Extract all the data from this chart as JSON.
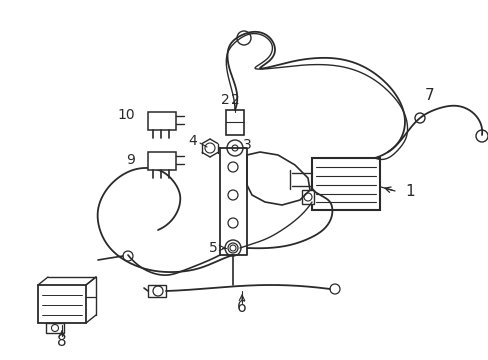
{
  "background_color": "#ffffff",
  "line_color": "#2a2a2a",
  "label_color": "#111111",
  "figsize": [
    4.89,
    3.6
  ],
  "dpi": 100,
  "xlim": [
    0,
    489
  ],
  "ylim": [
    0,
    360
  ]
}
